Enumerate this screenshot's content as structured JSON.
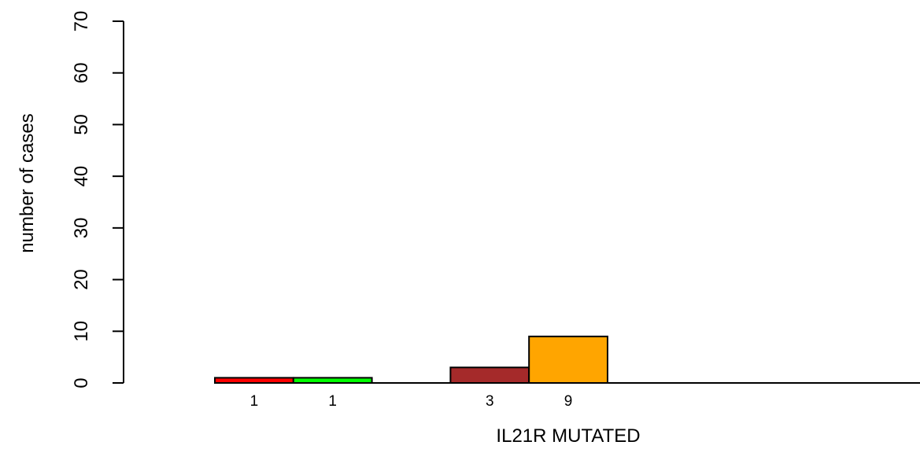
{
  "chart_data": {
    "type": "bar",
    "xlabel": "IL21R MUTATED",
    "ylabel": "number of cases",
    "ylim": [
      0,
      70
    ],
    "yticks": [
      0,
      10,
      20,
      30,
      40,
      50,
      60,
      70
    ],
    "grid": false,
    "bars": [
      {
        "slot": 0,
        "value": 1,
        "label": "1",
        "color": "#ff0000"
      },
      {
        "slot": 1,
        "value": 1,
        "label": "1",
        "color": "#00ff00"
      },
      {
        "slot": 3,
        "value": 3,
        "label": "3",
        "color": "#a52a2a"
      },
      {
        "slot": 4,
        "value": 9,
        "label": "9",
        "color": "#ffa500"
      }
    ],
    "slots": 9
  }
}
